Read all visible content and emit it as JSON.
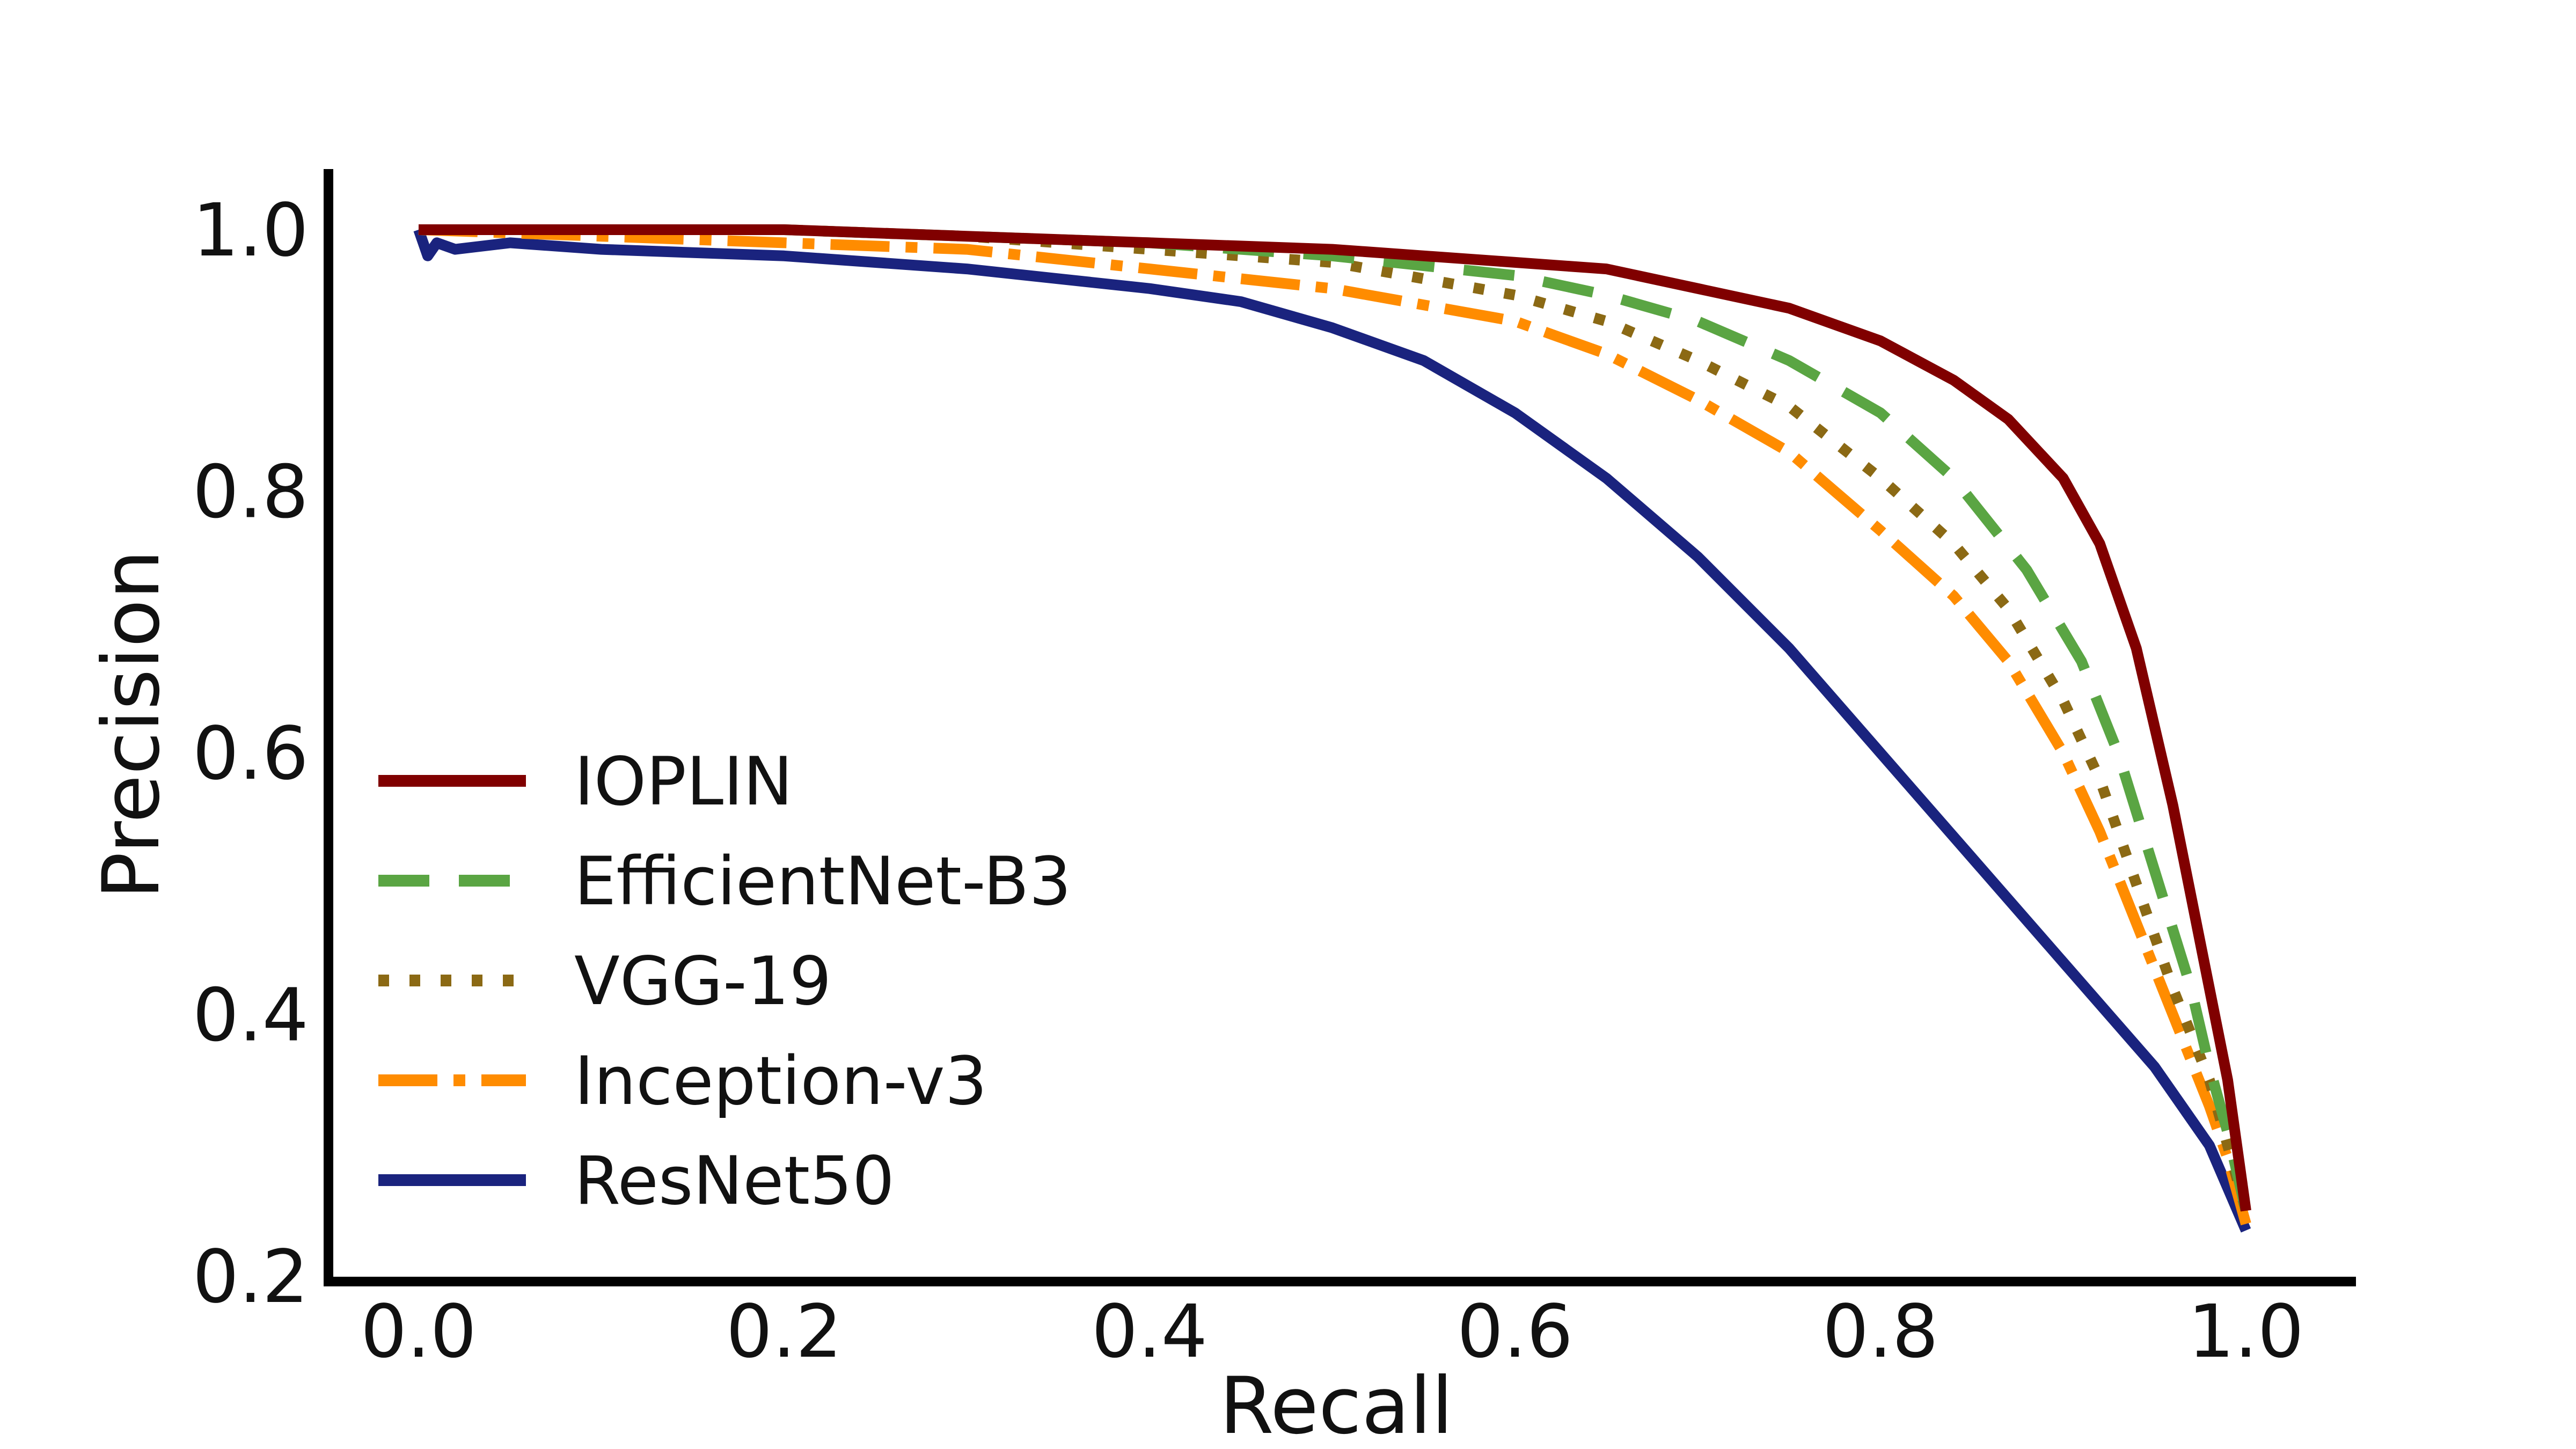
{
  "chart_data": {
    "type": "line",
    "title": "",
    "xlabel": "Recall",
    "ylabel": "Precision",
    "xlim": [
      -0.05,
      1.05
    ],
    "ylim": [
      0.2,
      1.04
    ],
    "xticks": [
      "0.0",
      "0.2",
      "0.4",
      "0.6",
      "0.8",
      "1.0"
    ],
    "yticks": [
      "0.2",
      "0.4",
      "0.6",
      "0.8",
      "1.0"
    ],
    "grid": false,
    "legend_position": "lower-left",
    "series": [
      {
        "name": "IOPLIN",
        "color": "#800000",
        "dash": "solid",
        "points": [
          [
            0.0,
            1.0
          ],
          [
            0.1,
            1.0
          ],
          [
            0.2,
            1.0
          ],
          [
            0.3,
            0.995
          ],
          [
            0.4,
            0.99
          ],
          [
            0.5,
            0.985
          ],
          [
            0.6,
            0.975
          ],
          [
            0.65,
            0.97
          ],
          [
            0.7,
            0.955
          ],
          [
            0.75,
            0.94
          ],
          [
            0.8,
            0.915
          ],
          [
            0.84,
            0.885
          ],
          [
            0.87,
            0.855
          ],
          [
            0.9,
            0.81
          ],
          [
            0.92,
            0.76
          ],
          [
            0.94,
            0.68
          ],
          [
            0.96,
            0.56
          ],
          [
            0.98,
            0.42
          ],
          [
            0.99,
            0.35
          ],
          [
            1.0,
            0.25
          ]
        ]
      },
      {
        "name": "EfficientNet-B3",
        "color": "#5aa543",
        "dash": "dashed",
        "points": [
          [
            0.0,
            1.0
          ],
          [
            0.1,
            1.0
          ],
          [
            0.2,
            1.0
          ],
          [
            0.3,
            0.995
          ],
          [
            0.4,
            0.99
          ],
          [
            0.5,
            0.98
          ],
          [
            0.6,
            0.965
          ],
          [
            0.65,
            0.95
          ],
          [
            0.7,
            0.93
          ],
          [
            0.75,
            0.9
          ],
          [
            0.8,
            0.86
          ],
          [
            0.84,
            0.81
          ],
          [
            0.88,
            0.74
          ],
          [
            0.91,
            0.67
          ],
          [
            0.93,
            0.6
          ],
          [
            0.95,
            0.51
          ],
          [
            0.97,
            0.42
          ],
          [
            0.98,
            0.36
          ],
          [
            0.99,
            0.31
          ],
          [
            1.0,
            0.25
          ]
        ]
      },
      {
        "name": "VGG-19",
        "color": "#8b6914",
        "dash": "dotted",
        "points": [
          [
            0.0,
            1.0
          ],
          [
            0.1,
            1.0
          ],
          [
            0.2,
            1.0
          ],
          [
            0.3,
            0.995
          ],
          [
            0.4,
            0.985
          ],
          [
            0.5,
            0.975
          ],
          [
            0.6,
            0.95
          ],
          [
            0.65,
            0.93
          ],
          [
            0.7,
            0.9
          ],
          [
            0.75,
            0.865
          ],
          [
            0.8,
            0.81
          ],
          [
            0.84,
            0.76
          ],
          [
            0.87,
            0.71
          ],
          [
            0.9,
            0.64
          ],
          [
            0.92,
            0.58
          ],
          [
            0.94,
            0.5
          ],
          [
            0.96,
            0.42
          ],
          [
            0.98,
            0.35
          ],
          [
            0.99,
            0.3
          ],
          [
            1.0,
            0.25
          ]
        ]
      },
      {
        "name": "Inception-v3",
        "color": "#ff8c00",
        "dash": "dashdot",
        "points": [
          [
            0.0,
            1.0
          ],
          [
            0.1,
            0.995
          ],
          [
            0.2,
            0.99
          ],
          [
            0.3,
            0.985
          ],
          [
            0.4,
            0.97
          ],
          [
            0.5,
            0.955
          ],
          [
            0.6,
            0.93
          ],
          [
            0.65,
            0.905
          ],
          [
            0.7,
            0.87
          ],
          [
            0.75,
            0.83
          ],
          [
            0.8,
            0.77
          ],
          [
            0.84,
            0.72
          ],
          [
            0.87,
            0.67
          ],
          [
            0.9,
            0.6
          ],
          [
            0.92,
            0.54
          ],
          [
            0.94,
            0.47
          ],
          [
            0.96,
            0.4
          ],
          [
            0.98,
            0.33
          ],
          [
            0.99,
            0.29
          ],
          [
            1.0,
            0.24
          ]
        ]
      },
      {
        "name": "ResNet50",
        "color": "#1a237e",
        "dash": "solid",
        "points": [
          [
            0.0,
            1.0
          ],
          [
            0.005,
            0.98
          ],
          [
            0.01,
            0.99
          ],
          [
            0.02,
            0.985
          ],
          [
            0.05,
            0.99
          ],
          [
            0.1,
            0.985
          ],
          [
            0.2,
            0.98
          ],
          [
            0.3,
            0.97
          ],
          [
            0.4,
            0.955
          ],
          [
            0.45,
            0.945
          ],
          [
            0.5,
            0.925
          ],
          [
            0.55,
            0.9
          ],
          [
            0.6,
            0.86
          ],
          [
            0.65,
            0.81
          ],
          [
            0.7,
            0.75
          ],
          [
            0.75,
            0.68
          ],
          [
            0.8,
            0.6
          ],
          [
            0.85,
            0.52
          ],
          [
            0.9,
            0.44
          ],
          [
            0.95,
            0.36
          ],
          [
            0.98,
            0.3
          ],
          [
            1.0,
            0.235
          ]
        ]
      }
    ]
  }
}
